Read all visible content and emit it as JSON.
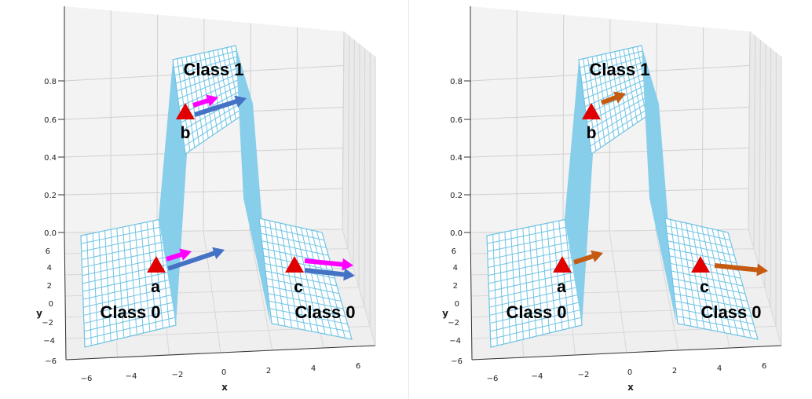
{
  "colors": {
    "surface": "#87ceeb",
    "grid_line": "#6ec3e4",
    "point": "#e00000",
    "arrow_magenta": "#ff00ff",
    "arrow_blue": "#4472c4",
    "arrow_orange": "#c55a11",
    "pane_grid": "#b0b0b0"
  },
  "chart_data": [
    {
      "type": "surface3d",
      "xlabel": "x",
      "ylabel": "y",
      "xlim": [
        -6,
        6
      ],
      "ylim": [
        -6,
        6
      ],
      "zlim": [
        0,
        0.9
      ],
      "x_ticks": [
        "−6",
        "−4",
        "−2",
        "0",
        "2",
        "4",
        "6"
      ],
      "y_ticks": [
        "−6",
        "−4",
        "−2",
        "0",
        "2",
        "4",
        "6"
      ],
      "z_ticks": [
        "0.0",
        "0.2",
        "0.4",
        "0.6",
        "0.8"
      ],
      "regions": [
        "Class 0",
        "Class 1",
        "Class 0"
      ],
      "points": [
        {
          "label": "a",
          "arrows": [
            "magenta",
            "blue"
          ]
        },
        {
          "label": "b",
          "arrows": [
            "magenta",
            "blue"
          ]
        },
        {
          "label": "c",
          "arrows": [
            "magenta",
            "blue"
          ]
        }
      ]
    },
    {
      "type": "surface3d",
      "xlabel": "x",
      "ylabel": "y",
      "xlim": [
        -6,
        6
      ],
      "ylim": [
        -6,
        6
      ],
      "zlim": [
        0,
        0.9
      ],
      "x_ticks": [
        "−6",
        "−4",
        "−2",
        "0",
        "2",
        "4",
        "6"
      ],
      "y_ticks": [
        "−6",
        "−4",
        "−2",
        "0",
        "2",
        "4",
        "6"
      ],
      "z_ticks": [
        "0.0",
        "0.2",
        "0.4",
        "0.6",
        "0.8"
      ],
      "regions": [
        "Class 0",
        "Class 1",
        "Class 0"
      ],
      "points": [
        {
          "label": "a",
          "arrows": [
            "orange"
          ]
        },
        {
          "label": "b",
          "arrows": [
            "orange"
          ]
        },
        {
          "label": "c",
          "arrows": [
            "orange"
          ]
        }
      ]
    }
  ]
}
